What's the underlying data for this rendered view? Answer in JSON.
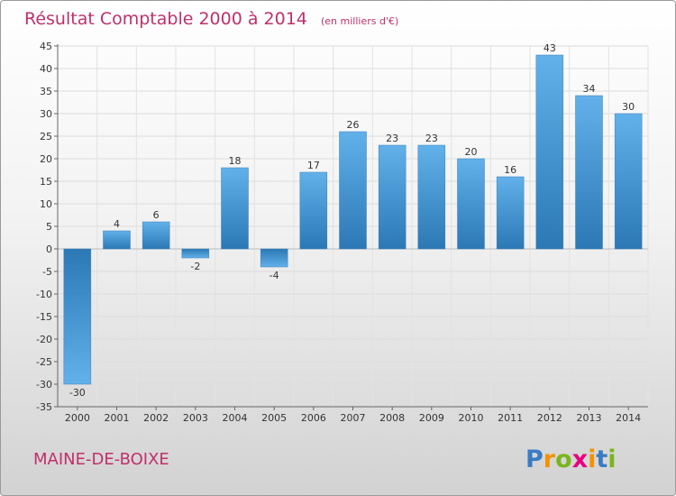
{
  "chart_data": {
    "type": "bar",
    "title": "Résultat Comptable 2000 à 2014",
    "subtitle": "(en milliers d'€)",
    "categories": [
      "2000",
      "2001",
      "2002",
      "2003",
      "2004",
      "2005",
      "2006",
      "2007",
      "2008",
      "2009",
      "2010",
      "2011",
      "2012",
      "2013",
      "2014"
    ],
    "values": [
      -30,
      4,
      6,
      -2,
      18,
      -4,
      17,
      26,
      23,
      23,
      20,
      16,
      43,
      34,
      30
    ],
    "ylim": [
      -35,
      45
    ],
    "ytick_step": 5,
    "xlabel": "",
    "ylabel": "",
    "grid": true,
    "colors": {
      "bar_light": "#62b1ea",
      "bar_dark": "#2b78b5",
      "text": "#333333",
      "accent": "#c0306a"
    }
  },
  "footer": {
    "commune": "MAINE-DE-BOIXE",
    "brand": "Proxiti",
    "brand_letters": [
      {
        "ch": "P",
        "color": "#3a7cc4"
      },
      {
        "ch": "r",
        "color": "#f39200"
      },
      {
        "ch": "o",
        "color": "#7ab51d"
      },
      {
        "ch": "x",
        "color": "#e6007e"
      },
      {
        "ch": "i",
        "color": "#f39200"
      },
      {
        "ch": "t",
        "color": "#3a7cc4"
      },
      {
        "ch": "i",
        "color": "#7ab51d"
      }
    ]
  }
}
